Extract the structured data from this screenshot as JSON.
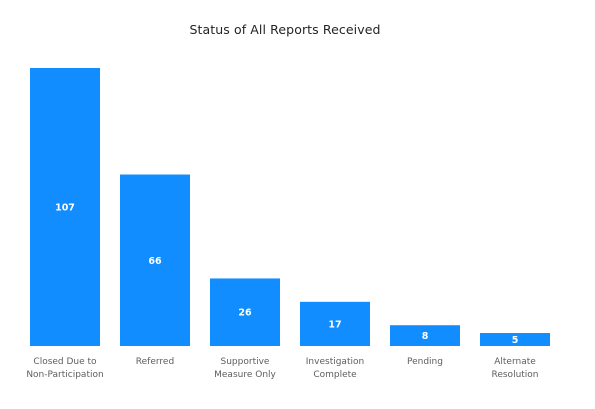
{
  "chart_data": {
    "type": "bar",
    "title": "Status of All Reports Received",
    "xlabel": "",
    "ylabel": "",
    "categories": [
      [
        "Closed Due to",
        "Non-Participation"
      ],
      [
        "Referred"
      ],
      [
        "Supportive",
        "Measure Only"
      ],
      [
        "Investigation",
        "Complete"
      ],
      [
        "Pending"
      ],
      [
        "Alternate",
        "Resolution"
      ]
    ],
    "values": [
      107,
      66,
      26,
      17,
      8,
      5
    ],
    "data_labels": [
      "107",
      "66",
      "26",
      "17",
      "8",
      "5"
    ],
    "ylim": [
      0,
      107
    ],
    "grid": false,
    "legend": "none",
    "bar_color": "#118DFF"
  }
}
